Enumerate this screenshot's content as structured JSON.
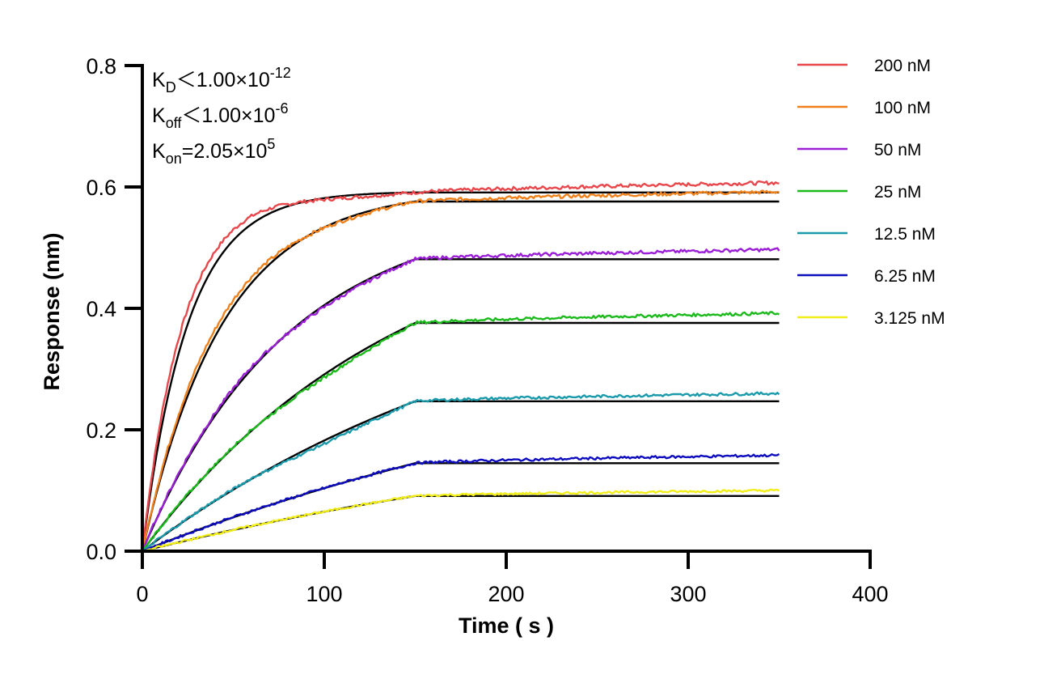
{
  "chart_data": {
    "type": "line",
    "title": "",
    "xlabel": "Time ( s )",
    "ylabel": "Response (nm)",
    "xlim": [
      0,
      400
    ],
    "ylim": [
      0,
      0.8
    ],
    "x_ticks": [
      0,
      100,
      200,
      300,
      400
    ],
    "y_ticks": [
      0.0,
      0.2,
      0.4,
      0.6,
      0.8
    ],
    "x_tick_labels": [
      "0",
      "100",
      "200",
      "300",
      "400"
    ],
    "y_tick_labels": [
      "0.0",
      "0.2",
      "0.4",
      "0.6",
      "0.8"
    ],
    "grid": false,
    "legend_position": "top-right",
    "association_end": 150,
    "time_end": 350,
    "series": [
      {
        "name": "200 nM",
        "color": "#e8474b",
        "plateau": 0.591,
        "dissoc_end": 0.607,
        "k": 0.04,
        "raw_k": 0.045
      },
      {
        "name": "100 nM",
        "color": "#f0811a",
        "plateau": 0.576,
        "dissoc_end": 0.592,
        "k": 0.0225,
        "raw_k": 0.024
      },
      {
        "name": "50 nM",
        "color": "#9b1fd6",
        "plateau": 0.481,
        "dissoc_end": 0.497,
        "k": 0.0125,
        "raw_k": 0.013
      },
      {
        "name": "25 nM",
        "color": "#1cba1c",
        "plateau": 0.376,
        "dissoc_end": 0.392,
        "k": 0.007,
        "raw_k": 0.0072
      },
      {
        "name": "12.5 nM",
        "color": "#1b9aac",
        "plateau": 0.247,
        "dissoc_end": 0.26,
        "k": 0.0045,
        "raw_k": 0.0047
      },
      {
        "name": "6.25 nM",
        "color": "#0d0dbf",
        "plateau": 0.145,
        "dissoc_end": 0.158,
        "k": 0.003,
        "raw_k": 0.0031
      },
      {
        "name": "3.125 nM",
        "color": "#f2ee1a",
        "plateau": 0.091,
        "dissoc_end": 0.1,
        "k": 0.003,
        "raw_k": 0.0031
      }
    ],
    "fit_color": "#000000",
    "annotations": [
      {
        "main": "K",
        "sub": "D",
        "rest": "＜1.00×10",
        "sup": "-12"
      },
      {
        "main": "K",
        "sub": "off",
        "rest": "＜1.00×10",
        "sup": "-6"
      },
      {
        "main": "K",
        "sub": "on",
        "rest": "=2.05×10",
        "sup": "5"
      }
    ]
  }
}
